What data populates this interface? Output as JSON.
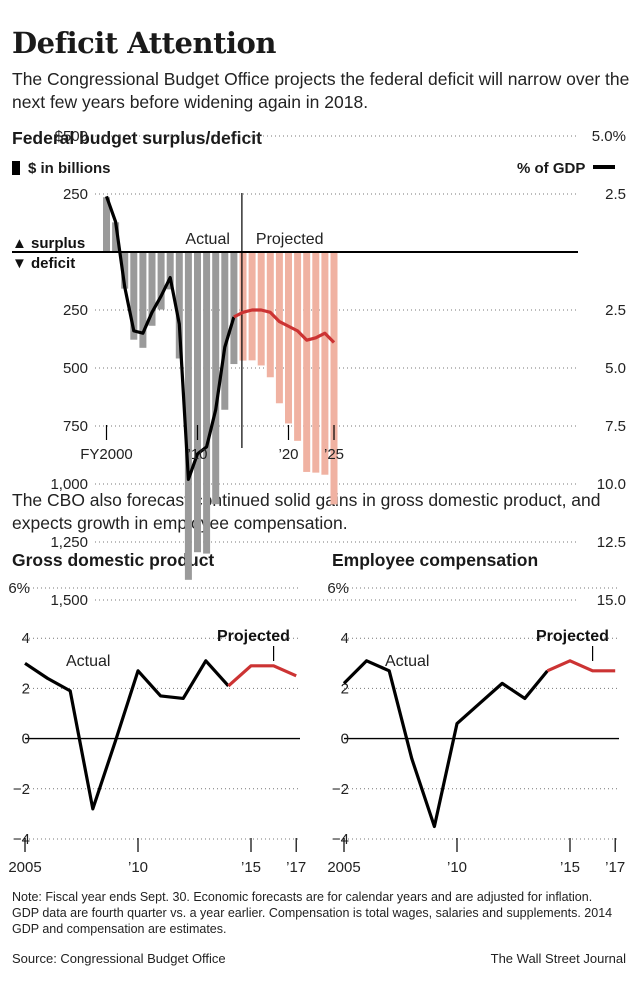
{
  "title": "Deficit Attention",
  "subtitle": "The Congressional Budget Office projects the federal deficit will narrow over the next few years before widening again in 2018.",
  "section_title": "Federal budget surplus/deficit",
  "legend": {
    "bars": "$ in billions",
    "line": "% of GDP"
  },
  "middle_text": "The CBO also forecast continued solid gains in gross domestic product, and expects growth in employee compensation.",
  "note": "Note: Fiscal year ends Sept. 30. Economic forecasts are for calendar years and are adjusted for inflation. GDP data are fourth quarter vs. a year earlier. Compensation is total wages, salaries and supplements. 2014 GDP and compensation are estimates.",
  "source": "Source: Congressional Budget Office",
  "credit": "The Wall Street Journal",
  "colors": {
    "actual_bar": "#9a9a9a",
    "projected_bar": "#f0b2a2",
    "actual_line": "#000000",
    "projected_line": "#cc3333",
    "dotted": "#777777"
  },
  "chart_data": [
    {
      "type": "bar",
      "title": "Federal budget surplus/deficit",
      "surplus_label": "▲ surplus",
      "deficit_label": "▼ deficit",
      "actual_label": "Actual",
      "projected_label": "Projected",
      "left_axis_title": "$ in billions",
      "right_axis_title": "% of GDP",
      "left_ticks": [
        {
          "v": 500,
          "label": "$500"
        },
        {
          "v": 250,
          "label": "250"
        },
        {
          "v": -250,
          "label": "250"
        },
        {
          "v": -500,
          "label": "500"
        },
        {
          "v": -750,
          "label": "750"
        },
        {
          "v": -1000,
          "label": "1,000"
        },
        {
          "v": -1250,
          "label": "1,250"
        },
        {
          "v": -1500,
          "label": "1,500"
        }
      ],
      "right_ticks": [
        {
          "v": 5,
          "label": "5.0%"
        },
        {
          "v": 2.5,
          "label": "2.5"
        },
        {
          "v": -2.5,
          "label": "2.5"
        },
        {
          "v": -5,
          "label": "5.0"
        },
        {
          "v": -7.5,
          "label": "7.5"
        },
        {
          "v": -10,
          "label": "10.0"
        },
        {
          "v": -12.5,
          "label": "12.5"
        },
        {
          "v": -15,
          "label": "15.0"
        }
      ],
      "ylim_billions": [
        -1500,
        500
      ],
      "ylim_pct_gdp": [
        -15,
        5
      ],
      "x_ticks": [
        {
          "x": 2000,
          "label": "FY2000"
        },
        {
          "x": 2010,
          "label": "’10"
        },
        {
          "x": 2020,
          "label": "’20"
        },
        {
          "x": 2025,
          "label": "’25"
        }
      ],
      "x": [
        2000,
        2001,
        2002,
        2003,
        2004,
        2005,
        2006,
        2007,
        2008,
        2009,
        2010,
        2011,
        2012,
        2013,
        2014,
        2015,
        2016,
        2017,
        2018,
        2019,
        2020,
        2021,
        2022,
        2023,
        2024,
        2025
      ],
      "series": [
        {
          "name": "Actual ($ billions)",
          "values": [
            236,
            128,
            -158,
            -378,
            -413,
            -318,
            -248,
            -161,
            -459,
            -1413,
            -1294,
            -1300,
            -1087,
            -680,
            -483,
            null,
            null,
            null,
            null,
            null,
            null,
            null,
            null,
            null,
            null,
            null
          ]
        },
        {
          "name": "Projected ($ billions)",
          "values": [
            null,
            null,
            null,
            null,
            null,
            null,
            null,
            null,
            null,
            null,
            null,
            null,
            null,
            null,
            null,
            -468,
            -467,
            -489,
            -540,
            -652,
            -739,
            -814,
            -948,
            -951,
            -960,
            -1088
          ]
        },
        {
          "name": "Actual (% of GDP)",
          "values": [
            2.4,
            1.3,
            -1.5,
            -3.4,
            -3.5,
            -2.6,
            -1.9,
            -1.1,
            -3.1,
            -9.8,
            -8.7,
            -8.4,
            -6.8,
            -4.1,
            -2.8,
            null,
            null,
            null,
            null,
            null,
            null,
            null,
            null,
            null,
            null,
            null
          ]
        },
        {
          "name": "Projected (% of GDP)",
          "values": [
            null,
            null,
            null,
            null,
            null,
            null,
            null,
            null,
            null,
            null,
            null,
            null,
            null,
            null,
            -2.8,
            -2.6,
            -2.5,
            -2.5,
            -2.6,
            -3.0,
            -3.2,
            -3.4,
            -3.8,
            -3.7,
            -3.5,
            -3.9
          ]
        }
      ]
    },
    {
      "type": "line",
      "title": "Gross domestic product",
      "actual_label": "Actual",
      "projected_label": "Projected",
      "ylim": [
        -4,
        6
      ],
      "y_ticks": [
        {
          "v": 6,
          "label": "6%"
        },
        {
          "v": 4,
          "label": "4"
        },
        {
          "v": 2,
          "label": "2"
        },
        {
          "v": 0,
          "label": "0"
        },
        {
          "v": -2,
          "label": "−2"
        },
        {
          "v": -4,
          "label": "−4"
        }
      ],
      "x_ticks": [
        {
          "x": 2005,
          "label": "2005"
        },
        {
          "x": 2010,
          "label": "’10"
        },
        {
          "x": 2015,
          "label": "’15"
        },
        {
          "x": 2017,
          "label": "’17"
        }
      ],
      "x": [
        2005,
        2006,
        2007,
        2008,
        2009,
        2010,
        2011,
        2012,
        2013,
        2014,
        2015,
        2016,
        2017
      ],
      "series": [
        {
          "name": "Actual",
          "values": [
            3.0,
            2.4,
            1.9,
            -2.8,
            -0.1,
            2.7,
            1.7,
            1.6,
            3.1,
            2.1,
            null,
            null,
            null
          ]
        },
        {
          "name": "Projected",
          "values": [
            null,
            null,
            null,
            null,
            null,
            null,
            null,
            null,
            null,
            2.1,
            2.9,
            2.9,
            2.5
          ]
        }
      ]
    },
    {
      "type": "line",
      "title": "Employee compensation",
      "actual_label": "Actual",
      "projected_label": "Projected",
      "ylim": [
        -4,
        6
      ],
      "y_ticks": [
        {
          "v": 6,
          "label": "6%"
        },
        {
          "v": 4,
          "label": "4"
        },
        {
          "v": 2,
          "label": "2"
        },
        {
          "v": 0,
          "label": "0"
        },
        {
          "v": -2,
          "label": "−2"
        },
        {
          "v": -4,
          "label": "−4"
        }
      ],
      "x_ticks": [
        {
          "x": 2005,
          "label": "2005"
        },
        {
          "x": 2010,
          "label": "’10"
        },
        {
          "x": 2015,
          "label": "’15"
        },
        {
          "x": 2017,
          "label": "’17"
        }
      ],
      "x": [
        2005,
        2006,
        2007,
        2008,
        2009,
        2010,
        2011,
        2012,
        2013,
        2014,
        2015,
        2016,
        2017
      ],
      "series": [
        {
          "name": "Actual",
          "values": [
            2.2,
            3.1,
            2.7,
            -0.8,
            -3.5,
            0.6,
            1.4,
            2.2,
            1.6,
            2.7,
            null,
            null,
            null
          ]
        },
        {
          "name": "Projected",
          "values": [
            null,
            null,
            null,
            null,
            null,
            null,
            null,
            null,
            null,
            2.7,
            3.1,
            2.7,
            2.7
          ]
        }
      ]
    }
  ]
}
